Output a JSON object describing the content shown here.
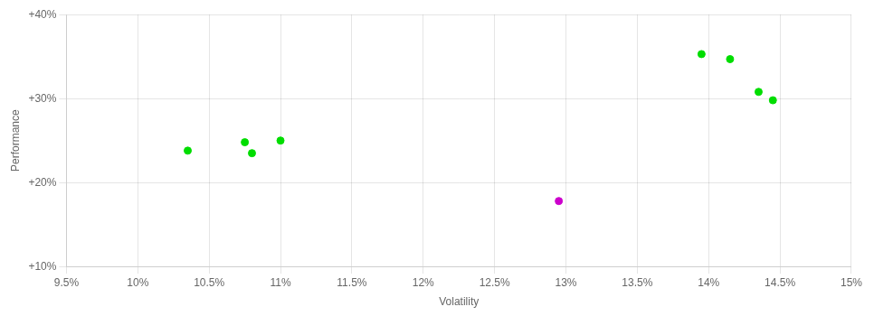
{
  "chart_data": {
    "type": "scatter",
    "xlabel": "Volatility",
    "ylabel": "Performance",
    "x": [
      0.1035,
      0.1075,
      0.108,
      0.11,
      0.1295,
      0.1395,
      0.1415,
      0.1435,
      0.1445
    ],
    "values": [
      0.238,
      0.248,
      0.235,
      0.25,
      0.178,
      0.353,
      0.347,
      0.308,
      0.298
    ],
    "colors": [
      "#00dd00",
      "#00dd00",
      "#00dd00",
      "#00dd00",
      "#cc00cc",
      "#00dd00",
      "#00dd00",
      "#00dd00",
      "#00dd00"
    ],
    "xlim": [
      0.095,
      0.15
    ],
    "ylim": [
      0.1,
      0.4
    ],
    "xticks": [
      {
        "value": 0.095,
        "label": "9.5%"
      },
      {
        "value": 0.1,
        "label": "10%"
      },
      {
        "value": 0.105,
        "label": "10.5%"
      },
      {
        "value": 0.11,
        "label": "11%"
      },
      {
        "value": 0.115,
        "label": "11.5%"
      },
      {
        "value": 0.12,
        "label": "12%"
      },
      {
        "value": 0.125,
        "label": "12.5%"
      },
      {
        "value": 0.13,
        "label": "13%"
      },
      {
        "value": 0.135,
        "label": "13.5%"
      },
      {
        "value": 0.14,
        "label": "14%"
      },
      {
        "value": 0.145,
        "label": "14.5%"
      },
      {
        "value": 0.15,
        "label": "15%"
      }
    ],
    "yticks": [
      {
        "value": 0.1,
        "label": "+10%"
      },
      {
        "value": 0.2,
        "label": "+20%"
      },
      {
        "value": 0.3,
        "label": "+30%"
      },
      {
        "value": 0.4,
        "label": "+40%"
      }
    ],
    "grid": true
  }
}
